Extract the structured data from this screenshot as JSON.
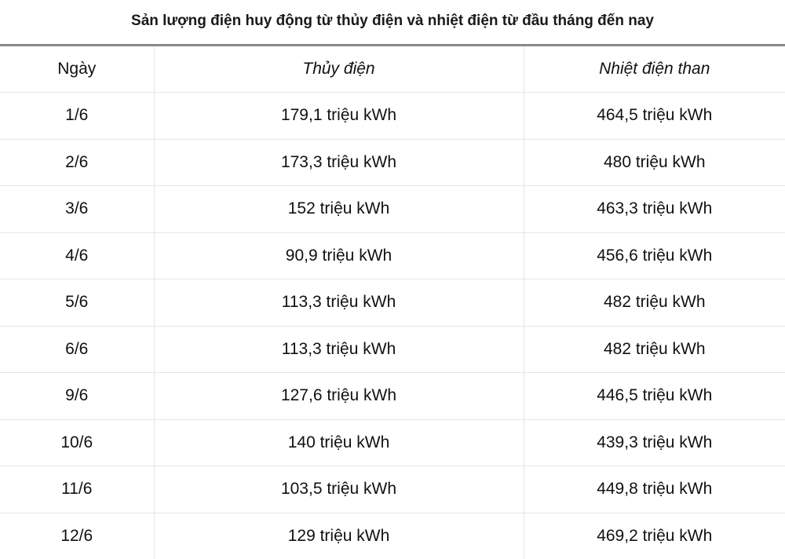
{
  "chart_data": {
    "type": "table",
    "title": "Sản lượng điện huy động từ thủy điện và nhiệt điện từ đầu tháng đến nay",
    "columns": [
      "Ngày",
      "Thủy điện",
      "Nhiệt điện than"
    ],
    "rows": [
      [
        "1/6",
        "179,1 triệu kWh",
        "464,5 triệu kWh"
      ],
      [
        "2/6",
        "173,3 triệu kWh",
        "480 triệu kWh"
      ],
      [
        "3/6",
        "152 triệu kWh",
        "463,3 triệu kWh"
      ],
      [
        "4/6",
        "90,9 triệu kWh",
        "456,6 triệu kWh"
      ],
      [
        "5/6",
        "113,3 triệu kWh",
        "482 triệu kWh"
      ],
      [
        "6/6",
        "113,3 triệu kWh",
        "482 triệu kWh"
      ],
      [
        "9/6",
        "127,6 triệu kWh",
        "446,5 triệu kWh"
      ],
      [
        "10/6",
        "140 triệu kWh",
        "439,3 triệu kWh"
      ],
      [
        "11/6",
        "103,5 triệu kWh",
        "449,8 triệu kWh"
      ],
      [
        "12/6",
        "129 triệu kWh",
        "469,2 triệu kWh"
      ]
    ]
  }
}
